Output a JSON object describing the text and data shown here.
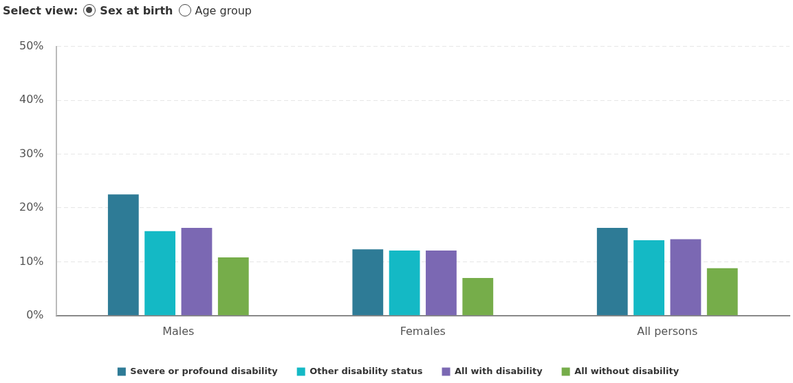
{
  "chart_data": {
    "type": "bar",
    "categories": [
      "Males",
      "Females",
      "All persons"
    ],
    "series": [
      {
        "name": "Severe or profound disability",
        "color": "#2e7b96",
        "values": [
          22.5,
          12.3,
          16.3
        ]
      },
      {
        "name": "Other disability status",
        "color": "#14b9c5",
        "values": [
          15.7,
          12.1,
          14.0
        ]
      },
      {
        "name": "All with disability",
        "color": "#7b68b3",
        "values": [
          16.3,
          12.1,
          14.2
        ]
      },
      {
        "name": "All without disability",
        "color": "#76ad4a",
        "values": [
          10.8,
          7.0,
          8.8
        ]
      }
    ],
    "ylim": [
      0,
      50
    ],
    "yticks": [
      {
        "value": 0,
        "label": "0%"
      },
      {
        "value": 10,
        "label": "10%"
      },
      {
        "value": 20,
        "label": "20%"
      },
      {
        "value": 30,
        "label": "30%"
      },
      {
        "value": 40,
        "label": "40%"
      },
      {
        "value": 50,
        "label": "50%"
      }
    ],
    "grid": "y",
    "legend": "bottom",
    "annotations": [
      "Select view:",
      "Sex at birth",
      "Age group"
    ]
  }
}
